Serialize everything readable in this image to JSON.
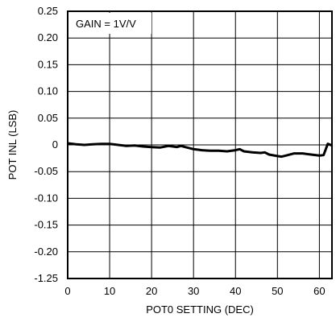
{
  "chart_data": {
    "type": "line",
    "title": "",
    "xlabel": "POT0 SETTING (DEC)",
    "ylabel": "POT INL (LSB)",
    "annotation": "GAIN = 1V/V",
    "xlim": [
      0,
      63
    ],
    "ylim": [
      -1.25,
      0.25
    ],
    "grid": true,
    "x_ticks": [
      "0",
      "10",
      "20",
      "30",
      "40",
      "50",
      "60"
    ],
    "y_ticks": [
      "0.25",
      "0.20",
      "0.15",
      "0.10",
      "0.05",
      "0",
      "-0.05",
      "-0.10",
      "-0.15",
      "-0.20",
      "-1.25"
    ],
    "line_color": "#000000",
    "series": [
      {
        "x": [
          0,
          2,
          4,
          6,
          8,
          10,
          12,
          14,
          16,
          18,
          20,
          22,
          24,
          26,
          27,
          28,
          30,
          32,
          34,
          36,
          38,
          40,
          41,
          42,
          44,
          46,
          47,
          48,
          50,
          51,
          52,
          54,
          56,
          58,
          60,
          61,
          62,
          63
        ],
        "y": [
          0.003,
          0.001,
          0.0,
          0.001,
          0.002,
          0.002,
          0.0,
          -0.002,
          -0.001,
          -0.003,
          -0.004,
          -0.005,
          -0.002,
          -0.004,
          -0.002,
          -0.004,
          -0.008,
          -0.01,
          -0.011,
          -0.011,
          -0.012,
          -0.01,
          -0.008,
          -0.012,
          -0.014,
          -0.015,
          -0.014,
          -0.018,
          -0.021,
          -0.022,
          -0.02,
          -0.016,
          -0.016,
          -0.018,
          -0.02,
          -0.019,
          0.002,
          -0.001
        ]
      }
    ]
  }
}
